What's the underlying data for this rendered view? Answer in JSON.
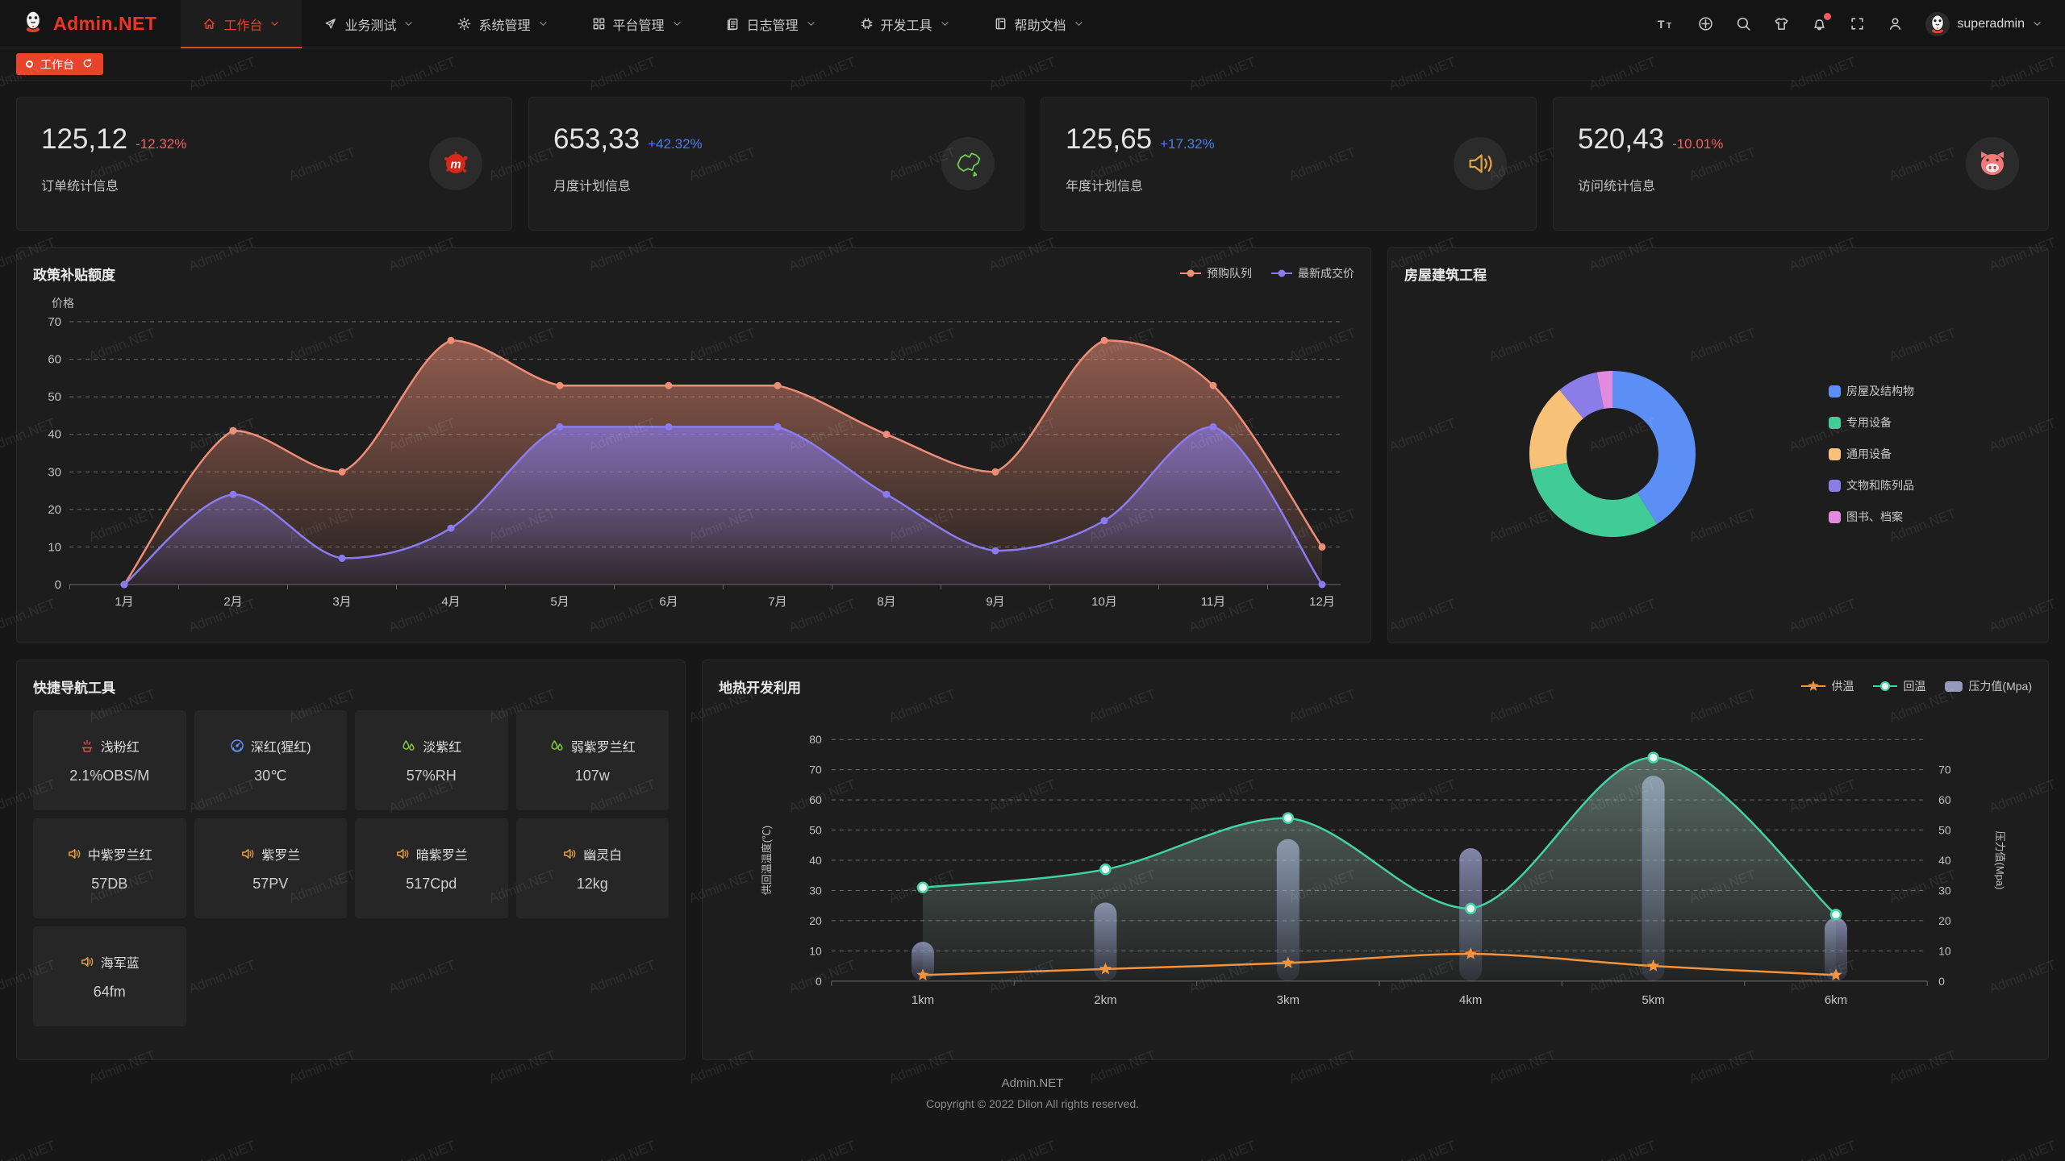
{
  "watermark": "Admin.NET",
  "navbar": {
    "logo_text": "Admin.NET",
    "menus": [
      {
        "label": "工作台",
        "icon": "home-icon",
        "active": true
      },
      {
        "label": "业务测试",
        "icon": "send-icon",
        "active": false
      },
      {
        "label": "系统管理",
        "icon": "gear-icon",
        "active": false
      },
      {
        "label": "平台管理",
        "icon": "grid-icon",
        "active": false
      },
      {
        "label": "日志管理",
        "icon": "log-icon",
        "active": false
      },
      {
        "label": "开发工具",
        "icon": "chip-icon",
        "active": false
      },
      {
        "label": "帮助文档",
        "icon": "book-icon",
        "active": false
      }
    ],
    "action_icons": [
      "font-size-icon",
      "language-icon",
      "search-icon",
      "theme-icon",
      "notification-icon",
      "fullscreen-icon",
      "user-icon"
    ],
    "notification_badge": true,
    "username": "superadmin"
  },
  "tabbar": {
    "tabs": [
      {
        "label": "工作台",
        "active": true
      }
    ]
  },
  "stat_cards": [
    {
      "value": "125,12",
      "delta": "-12.32%",
      "trend": "down",
      "label": "订单统计信息",
      "icon": "mixcloud-icon"
    },
    {
      "value": "653,33",
      "delta": "+42.32%",
      "trend": "up",
      "label": "月度计划信息",
      "icon": "china-map-icon"
    },
    {
      "value": "125,65",
      "delta": "+17.32%",
      "trend": "up",
      "label": "年度计划信息",
      "icon": "speaker-icon"
    },
    {
      "value": "520,43",
      "delta": "-10.01%",
      "trend": "down",
      "label": "访问统计信息",
      "icon": "pig-icon"
    }
  ],
  "colors": {
    "accent_red": "#e8442c",
    "delta_down": "#f65e5e",
    "delta_up": "#4b7cf6",
    "panel_bg": "#1d1d1d"
  },
  "chart_data": [
    {
      "type": "line",
      "title": "政策补贴额度",
      "ylabel": "价格",
      "ylim": [
        0,
        70
      ],
      "grid": "dashed",
      "legend_position": "top-right",
      "categories": [
        "1月",
        "2月",
        "3月",
        "4月",
        "5月",
        "6月",
        "7月",
        "8月",
        "9月",
        "10月",
        "11月",
        "12月"
      ],
      "series": [
        {
          "name": "预购队列",
          "color": "#ee8e76",
          "values": [
            0,
            41,
            30,
            65,
            53,
            53,
            53,
            40,
            30,
            65,
            53,
            10
          ]
        },
        {
          "name": "最新成交价",
          "color": "#8a7cf0",
          "values": [
            0,
            24,
            7,
            15,
            42,
            42,
            42,
            24,
            9,
            17,
            42,
            0
          ]
        }
      ]
    },
    {
      "type": "pie",
      "title": "房屋建筑工程",
      "legend_position": "right",
      "labels": [
        "房屋及结构物",
        "专用设备",
        "通用设备",
        "文物和陈列品",
        "图书、档案"
      ],
      "values": [
        41,
        31,
        17,
        8,
        3
      ],
      "colors": [
        "#5b8ff5",
        "#41cb96",
        "#f7c277",
        "#8b7ce8",
        "#e18ae0"
      ]
    },
    {
      "type": "line+bar",
      "title": "地热开发利用",
      "categories": [
        "1km",
        "2km",
        "3km",
        "4km",
        "5km",
        "6km"
      ],
      "y_left": {
        "label": "供回温温度(℃)",
        "lim": [
          0,
          80
        ]
      },
      "y_right": {
        "label": "压力值(Mpa)",
        "lim": [
          0,
          70
        ]
      },
      "grid": "dashed",
      "legend_position": "top-right",
      "series": [
        {
          "name": "供温",
          "chart": "line",
          "axis": "left",
          "color": "#f5923e",
          "marker": "star",
          "values": [
            2,
            4,
            6,
            9,
            5,
            2
          ]
        },
        {
          "name": "回温",
          "chart": "line",
          "axis": "left",
          "color": "#41d3a5",
          "marker": "circle",
          "values": [
            31,
            37,
            54,
            24,
            74,
            22
          ]
        },
        {
          "name": "压力值(Mpa)",
          "chart": "bar",
          "axis": "right",
          "color": "#a9b0d8",
          "values": [
            13,
            26,
            47,
            44,
            68,
            21
          ]
        }
      ]
    }
  ],
  "quick_nav": {
    "title": "快捷导航工具",
    "items": [
      {
        "name": "浅粉红",
        "value": "2.1%OBS/M",
        "icon": "fire-icon",
        "icon_color": "#e34d4d"
      },
      {
        "name": "深红(猩红)",
        "value": "30℃",
        "icon": "thermometer-icon",
        "icon_color": "#5a8ff5"
      },
      {
        "name": "淡紫红",
        "value": "57%RH",
        "icon": "drops-icon",
        "icon_color": "#7ac143"
      },
      {
        "name": "弱紫罗兰红",
        "value": "107w",
        "icon": "drops-icon",
        "icon_color": "#7ac143"
      },
      {
        "name": "中紫罗兰红",
        "value": "57DB",
        "icon": "speaker-icon",
        "icon_color": "#e6a23c"
      },
      {
        "name": "紫罗兰",
        "value": "57PV",
        "icon": "speaker-icon",
        "icon_color": "#e6a23c"
      },
      {
        "name": "暗紫罗兰",
        "value": "517Cpd",
        "icon": "speaker-icon",
        "icon_color": "#e6a23c"
      },
      {
        "name": "幽灵白",
        "value": "12kg",
        "icon": "speaker-icon",
        "icon_color": "#e6a23c"
      },
      {
        "name": "海军蓝",
        "value": "64fm",
        "icon": "speaker-icon",
        "icon_color": "#e6a23c"
      }
    ]
  },
  "footer": {
    "brand": "Admin.NET",
    "copyright": "Copyright © 2022 Dilon All rights reserved."
  }
}
